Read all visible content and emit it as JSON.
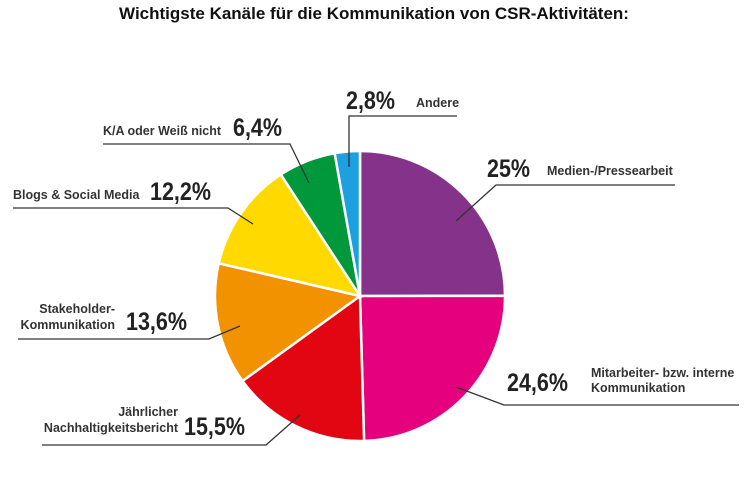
{
  "chart_data": {
    "type": "pie",
    "title": "Wichtigste Kanäle für die Kommunikation von CSR-Aktivitäten:",
    "start": "12 o'clock, clockwise",
    "slices": [
      {
        "label": "Medien-/Pressearbeit",
        "value": 25,
        "display": "25%",
        "color": "#84328A"
      },
      {
        "label": "Mitarbeiter- bzw. interne Kommunikation",
        "label_lines": [
          "Mitarbeiter- bzw. interne",
          "Kommunikation"
        ],
        "value": 24.6,
        "display": "24,6%",
        "color": "#E5007D"
      },
      {
        "label": "Jährlicher Nachhaltigkeitsbericht",
        "label_lines": [
          "Jährlicher",
          "Nachhaltigkeitsbericht"
        ],
        "value": 15.5,
        "display": "15,5%",
        "color": "#E20613"
      },
      {
        "label": "Stakeholder-Kommunikation",
        "label_lines": [
          "Stakeholder-",
          "Kommunikation"
        ],
        "value": 13.6,
        "display": "13,6%",
        "color": "#F39200"
      },
      {
        "label": "Blogs & Social Media",
        "value": 12.2,
        "display": "12,2%",
        "color": "#FFD900"
      },
      {
        "label": "K/A oder Weiß nicht",
        "value": 6.4,
        "display": "6,4%",
        "color": "#00983A"
      },
      {
        "label": "Andere",
        "value": 2.8,
        "display": "2,8%",
        "color": "#1EA0E0"
      }
    ]
  }
}
